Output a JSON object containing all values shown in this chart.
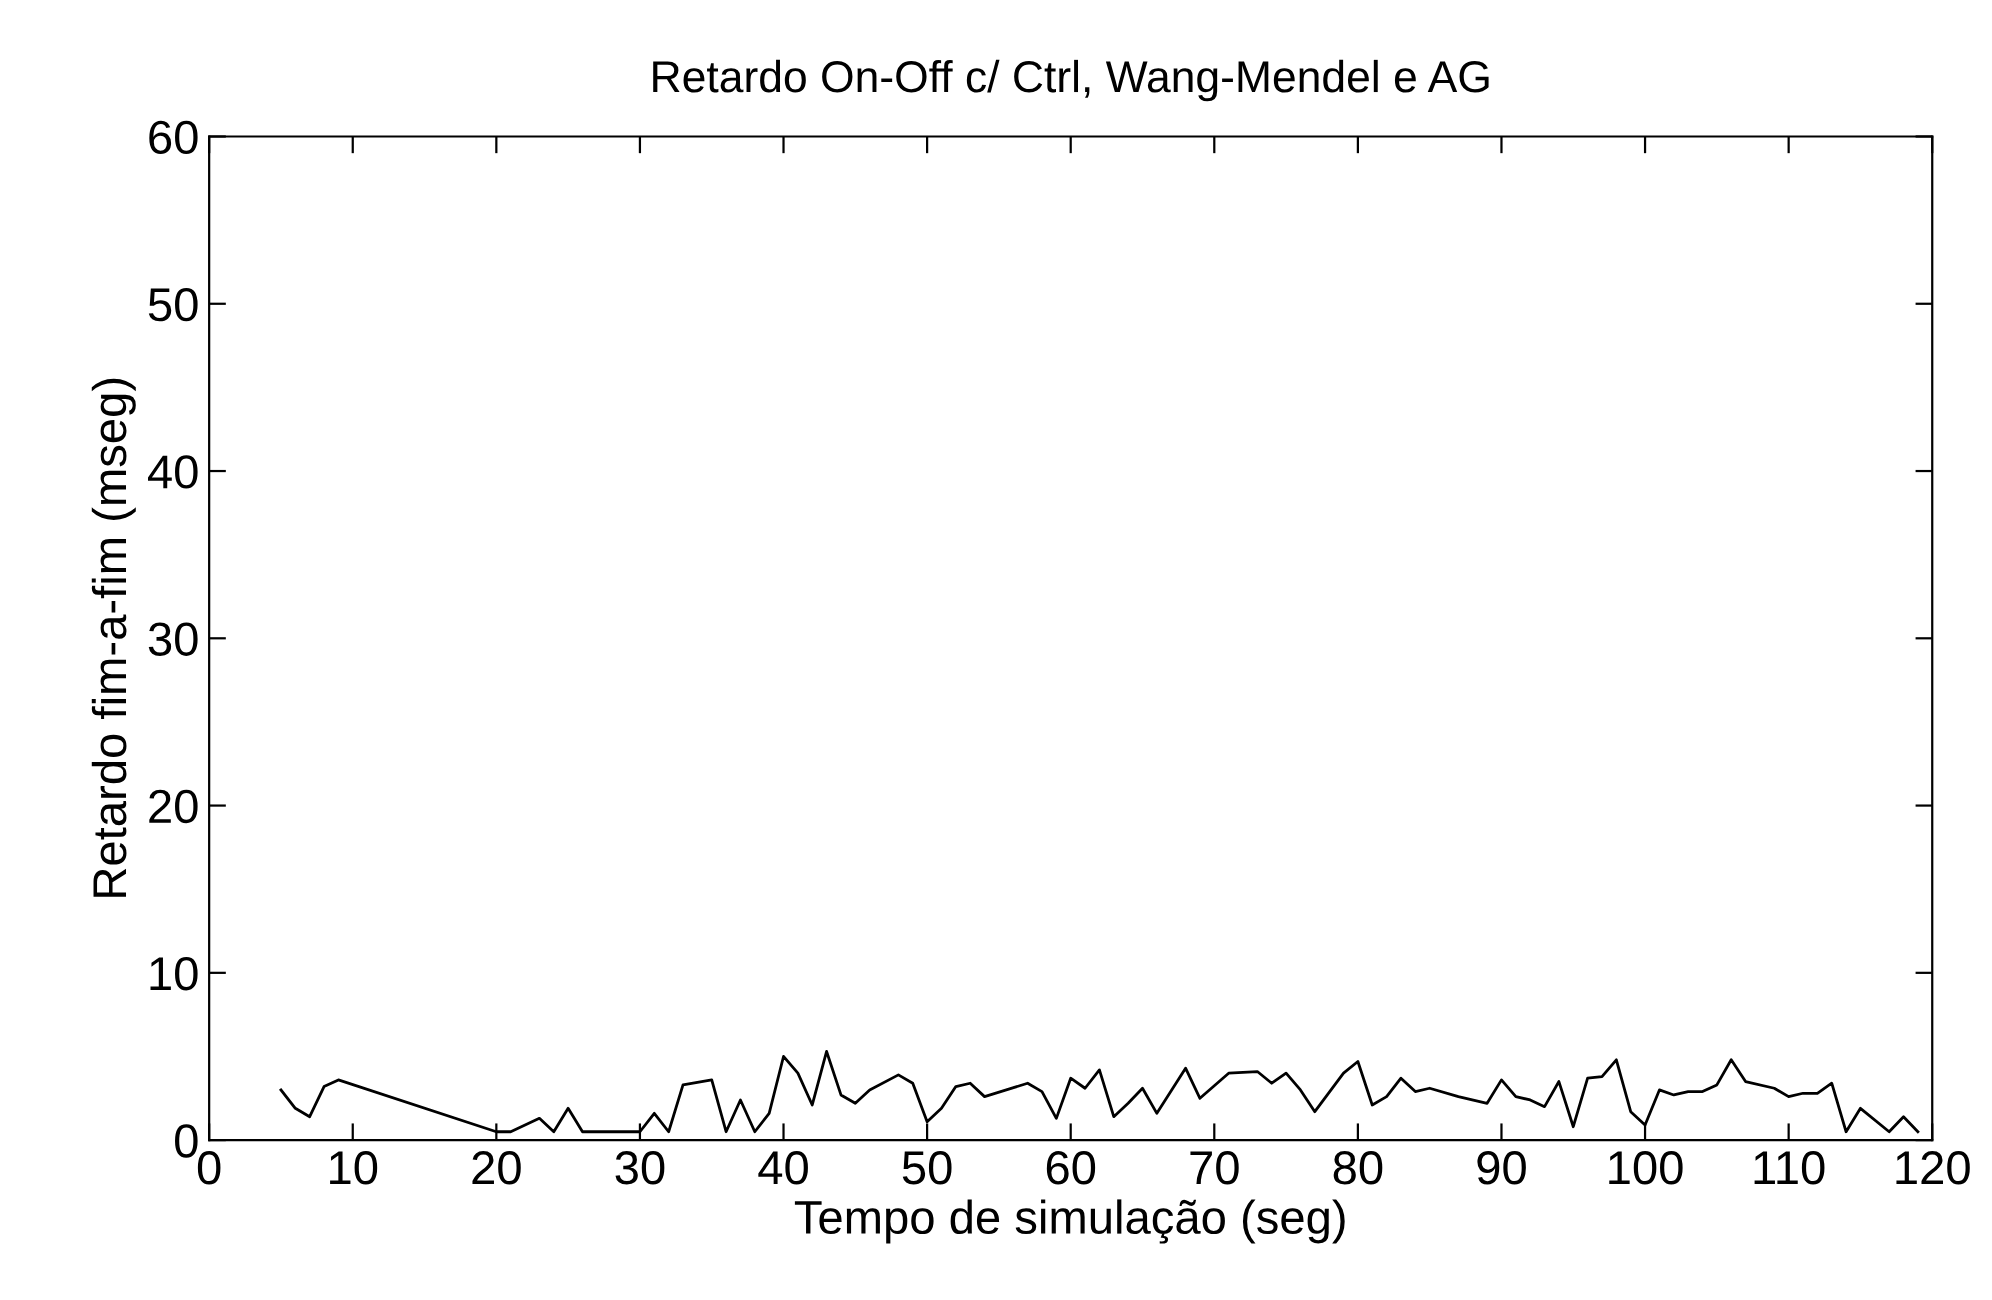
{
  "chart_data": {
    "type": "line",
    "title": "Retardo On-Off c/ Ctrl, Wang-Mendel e AG",
    "xlabel": "Tempo de simulação (seg)",
    "ylabel": "Retardo fim-a-fim (mseg)",
    "x": [
      5,
      6,
      7,
      8,
      9,
      20,
      21,
      23,
      24,
      25,
      26,
      30,
      31,
      32,
      33,
      35,
      36,
      37,
      38,
      39,
      40,
      41,
      42,
      43,
      44,
      45,
      46,
      48,
      49,
      50,
      51,
      52,
      53,
      54,
      57,
      58,
      59,
      60,
      61,
      62,
      63,
      64,
      65,
      66,
      68,
      69,
      71,
      73,
      74,
      75,
      76,
      77,
      79,
      80,
      81,
      82,
      83,
      84,
      85,
      87,
      89,
      90,
      91,
      92,
      93,
      94,
      95,
      96,
      97,
      98,
      99,
      100,
      101,
      102,
      103,
      104,
      105,
      106,
      107,
      109,
      110,
      111,
      112,
      113,
      114,
      115,
      117,
      118,
      119
    ],
    "series": [
      {
        "color": "#000000",
        "values": [
          3.0,
          1.9,
          1.4,
          3.2,
          3.6,
          0.5,
          0.5,
          1.3,
          0.5,
          1.9,
          0.5,
          0.5,
          1.6,
          0.5,
          3.3,
          3.6,
          0.5,
          2.4,
          0.5,
          1.6,
          5.0,
          4.0,
          2.1,
          5.3,
          2.7,
          2.2,
          3.0,
          3.9,
          3.4,
          1.1,
          1.9,
          3.2,
          3.4,
          2.6,
          3.4,
          2.9,
          1.3,
          3.7,
          3.1,
          4.2,
          1.4,
          2.2,
          3.1,
          1.6,
          4.3,
          2.5,
          4.0,
          4.1,
          3.4,
          4.0,
          3.0,
          1.7,
          4.0,
          4.7,
          2.1,
          2.6,
          3.7,
          2.9,
          3.1,
          2.6,
          2.2,
          3.6,
          2.6,
          2.4,
          2.0,
          3.5,
          0.8,
          3.7,
          3.8,
          4.8,
          1.7,
          0.9,
          3.0,
          2.7,
          2.9,
          2.9,
          3.3,
          4.8,
          3.5,
          3.1,
          2.6,
          2.8,
          2.8,
          3.4,
          0.5,
          1.9,
          0.5,
          1.4,
          0.5
        ]
      }
    ],
    "xlim": [
      0,
      120
    ],
    "xticks": [
      0,
      10,
      20,
      30,
      40,
      50,
      60,
      70,
      80,
      90,
      100,
      110,
      120
    ],
    "ylim": [
      0,
      60
    ],
    "yticks": [
      0,
      10,
      20,
      30,
      40,
      50,
      60
    ],
    "grid": false,
    "marker": "none",
    "line_style": "solid"
  }
}
